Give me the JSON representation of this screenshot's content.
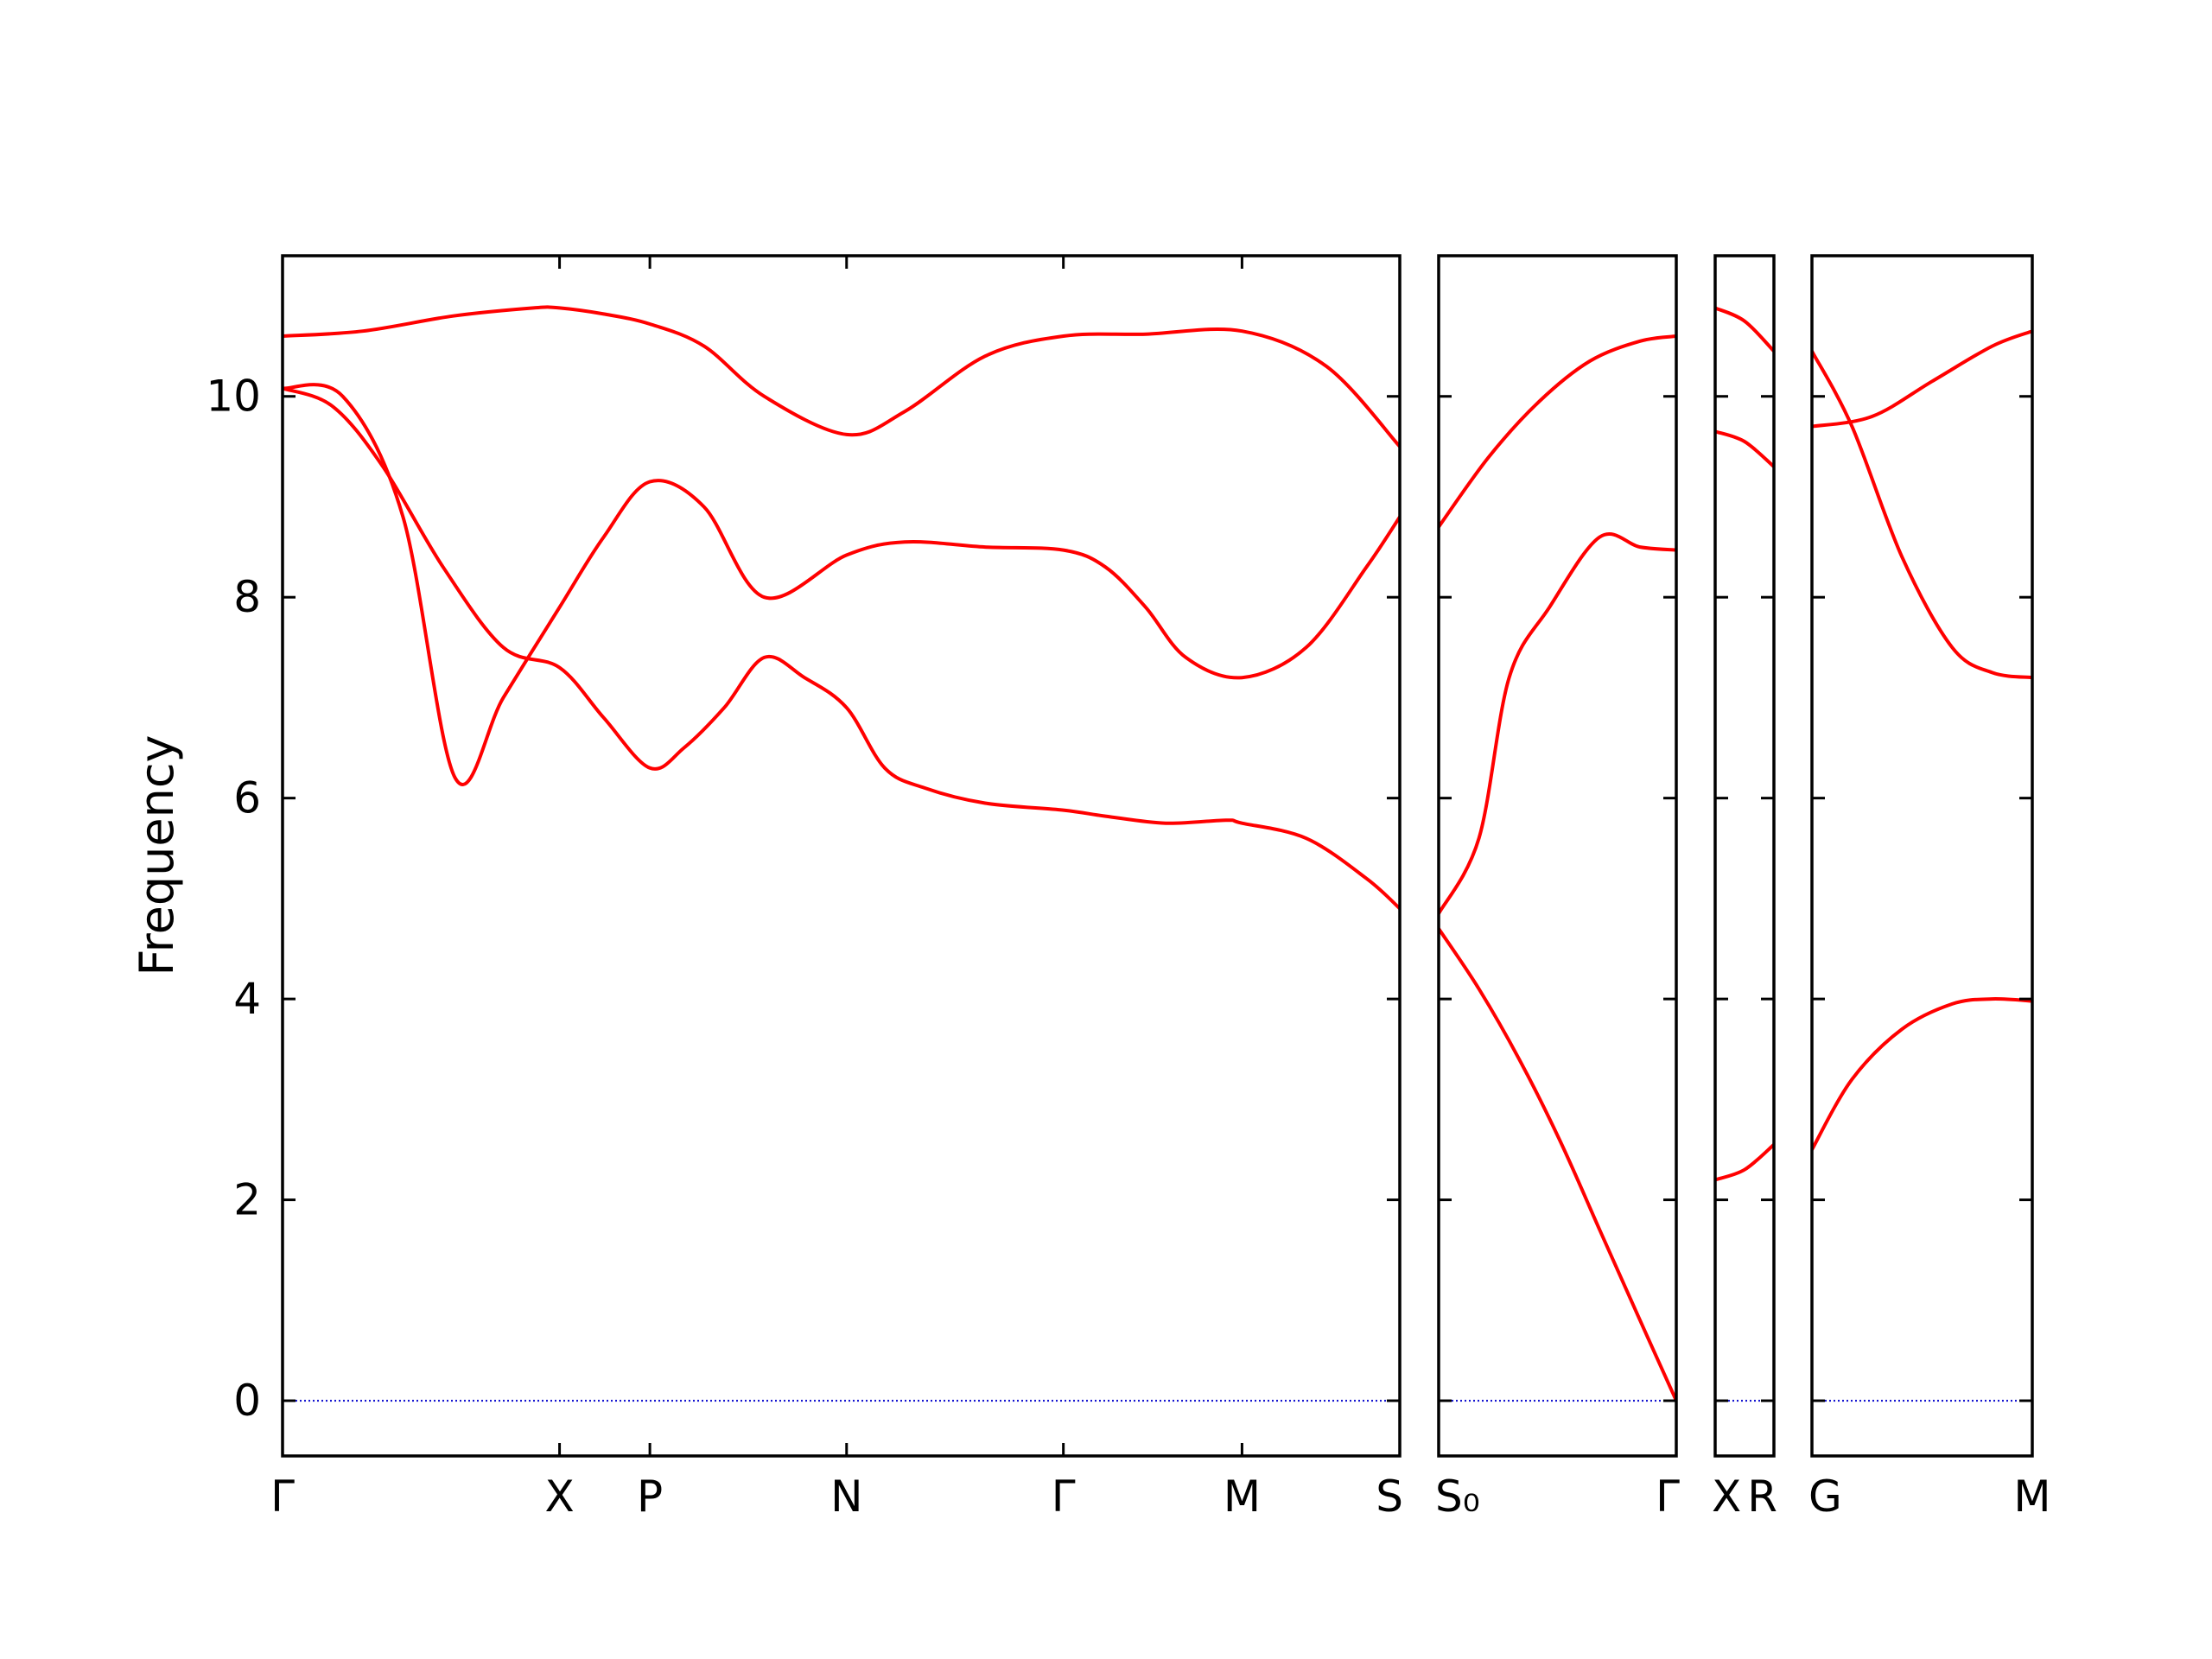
{
  "chart_data": {
    "type": "line",
    "ylabel": "Frequency",
    "ylim": [
      -0.55,
      11.4
    ],
    "yticks": [
      0,
      2,
      4,
      6,
      8,
      10
    ],
    "ytick_labels": [
      "0",
      "2",
      "4",
      "6",
      "8",
      "10"
    ],
    "grid": false,
    "colors": {
      "bands": "#ff0000",
      "zero_line": "#0000cc",
      "axes": "#000000"
    },
    "panels": [
      {
        "path": [
          "Γ",
          "X",
          "P",
          "N",
          "Γ",
          "M",
          "S"
        ],
        "xlim": [
          0,
          5.566
        ],
        "xticks": [
          0,
          1.38,
          1.83,
          2.81,
          3.89,
          4.78,
          5.566
        ],
        "xtick_labels": [
          "Γ",
          "X",
          "P",
          "N",
          "Γ",
          "M",
          "S"
        ],
        "bands": [
          {
            "x": [
              0,
              0.4,
              0.85,
              1.25,
              1.38,
              1.6,
              1.83,
              2.1,
              2.4,
              2.81,
              3.1,
              3.5,
              3.89,
              4.3,
              4.78,
              5.2,
              5.566
            ],
            "y": [
              10.6,
              10.65,
              10.8,
              10.88,
              10.88,
              10.82,
              10.72,
              10.5,
              10.0,
              9.62,
              9.85,
              10.4,
              10.6,
              10.62,
              10.65,
              10.3,
              9.5
            ]
          },
          {
            "x": [
              0,
              0.3,
              0.6,
              0.86,
              1.1,
              1.38,
              1.6,
              1.83,
              2.1,
              2.4,
              2.81,
              3.1,
              3.5,
              3.89,
              4.1,
              4.3,
              4.5,
              4.78,
              5.1,
              5.4,
              5.566
            ],
            "y": [
              10.08,
              10.0,
              8.8,
              6.2,
              7.0,
              7.9,
              8.6,
              9.15,
              8.9,
              8.0,
              8.42,
              8.55,
              8.5,
              8.47,
              8.3,
              7.9,
              7.4,
              7.2,
              7.5,
              8.3,
              8.8
            ]
          },
          {
            "x": [
              0,
              0.25,
              0.5,
              0.8,
              1.1,
              1.38,
              1.6,
              1.83,
              2.0,
              2.2,
              2.4,
              2.6,
              2.81,
              3.0,
              3.2,
              3.5,
              3.89,
              4.1,
              4.4,
              4.7,
              4.78,
              5.1,
              5.4,
              5.566
            ],
            "y": [
              10.08,
              9.9,
              9.3,
              8.3,
              7.5,
              7.3,
              6.8,
              6.3,
              6.5,
              6.9,
              7.4,
              7.2,
              6.9,
              6.3,
              6.1,
              5.95,
              5.88,
              5.82,
              5.75,
              5.78,
              5.75,
              5.6,
              5.2,
              4.9
            ]
          }
        ]
      },
      {
        "path": [
          "S₀",
          "Γ"
        ],
        "xlim": [
          0,
          1.18
        ],
        "xticks": [
          0,
          1.18
        ],
        "xtick_labels": [
          "S₀",
          "Γ"
        ],
        "bands": [
          {
            "x": [
              0,
              0.25,
              0.5,
              0.75,
              1.0,
              1.18
            ],
            "y": [
              8.7,
              9.4,
              9.95,
              10.35,
              10.55,
              10.6
            ]
          },
          {
            "x": [
              0,
              0.2,
              0.35,
              0.55,
              0.8,
              1.0,
              1.18
            ],
            "y": [
              4.85,
              5.6,
              7.2,
              7.9,
              8.6,
              8.5,
              8.47
            ]
          },
          {
            "x": [
              0,
              0.2,
              0.4,
              0.6,
              0.8,
              1.0,
              1.18
            ],
            "y": [
              4.7,
              4.1,
              3.4,
              2.6,
              1.7,
              0.8,
              0
            ]
          }
        ]
      },
      {
        "path": [
          "X",
          "R"
        ],
        "xlim": [
          0,
          0.3
        ],
        "xticks": [
          0,
          0.3
        ],
        "xtick_labels": [
          "X",
          "R"
        ],
        "bands": [
          {
            "x": [
              0,
              0.15,
              0.3
            ],
            "y": [
              10.88,
              10.75,
              10.45
            ]
          },
          {
            "x": [
              0,
              0.15,
              0.3
            ],
            "y": [
              9.65,
              9.55,
              9.3
            ]
          },
          {
            "x": [
              0,
              0.15,
              0.3
            ],
            "y": [
              2.2,
              2.3,
              2.55
            ]
          }
        ]
      },
      {
        "path": [
          "G",
          "M"
        ],
        "xlim": [
          0,
          1.1
        ],
        "xticks": [
          0,
          1.1
        ],
        "xtick_labels": [
          "G",
          "M"
        ],
        "bands": [
          {
            "x": [
              0,
              0.3,
              0.6,
              0.9,
              1.1
            ],
            "y": [
              9.7,
              9.8,
              10.15,
              10.5,
              10.65
            ]
          },
          {
            "x": [
              0,
              0.2,
              0.45,
              0.7,
              0.9,
              1.1
            ],
            "y": [
              10.45,
              9.7,
              8.4,
              7.5,
              7.25,
              7.2
            ]
          },
          {
            "x": [
              0,
              0.2,
              0.45,
              0.7,
              0.9,
              1.1
            ],
            "y": [
              2.5,
              3.2,
              3.7,
              3.95,
              4.0,
              3.98
            ]
          }
        ]
      }
    ]
  }
}
